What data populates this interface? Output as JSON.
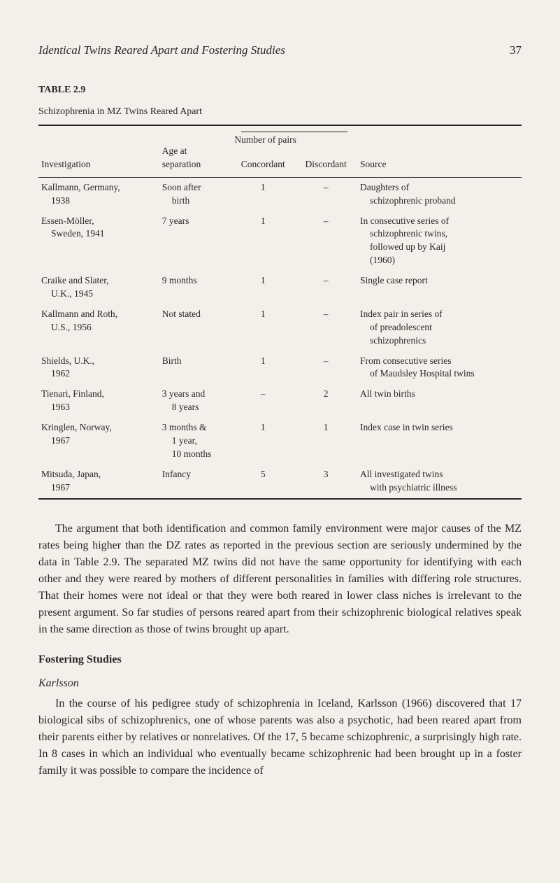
{
  "header": {
    "running_head": "Identical Twins Reared Apart and Fostering Studies",
    "page_number": "37"
  },
  "table": {
    "label": "TABLE 2.9",
    "title": "Schizophrenia in MZ Twins Reared Apart",
    "columns": {
      "investigation": "Investigation",
      "age": "Age at separation",
      "age_top": "Age at",
      "age_bottom": "separation",
      "number_pairs": "Number of pairs",
      "concordant": "Concordant",
      "discordant": "Discordant",
      "source": "Source"
    },
    "rows": [
      {
        "investigation_l1": "Kallmann, Germany,",
        "investigation_l2": "1938",
        "age_l1": "Soon after",
        "age_l2": "birth",
        "concordant": "1",
        "discordant": "–",
        "source_l1": "Daughters of",
        "source_l2": "schizophrenic proband"
      },
      {
        "investigation_l1": "Essen-Möller,",
        "investigation_l2": "Sweden, 1941",
        "age_l1": "7 years",
        "age_l2": "",
        "concordant": "1",
        "discordant": "–",
        "source_l1": "In consecutive series of",
        "source_l2": "schizophrenic twins,",
        "source_l3": "followed up by Kaij",
        "source_l4": "(1960)"
      },
      {
        "investigation_l1": "Craike and Slater,",
        "investigation_l2": "U.K., 1945",
        "age_l1": "9 months",
        "age_l2": "",
        "concordant": "1",
        "discordant": "–",
        "source_l1": "Single case report"
      },
      {
        "investigation_l1": "Kallmann and Roth,",
        "investigation_l2": "U.S., 1956",
        "age_l1": "Not stated",
        "age_l2": "",
        "concordant": "1",
        "discordant": "–",
        "source_l1": "Index pair in series of",
        "source_l2": "of preadolescent",
        "source_l3": "schizophrenics"
      },
      {
        "investigation_l1": "Shields, U.K.,",
        "investigation_l2": "1962",
        "age_l1": "Birth",
        "age_l2": "",
        "concordant": "1",
        "discordant": "–",
        "source_l1": "From consecutive series",
        "source_l2": "of Maudsley Hospital twins"
      },
      {
        "investigation_l1": "Tienari, Finland,",
        "investigation_l2": "1963",
        "age_l1": "3 years and",
        "age_l2": "8 years",
        "concordant": "–",
        "discordant": "2",
        "source_l1": "All twin births"
      },
      {
        "investigation_l1": "Kringlen, Norway,",
        "investigation_l2": "1967",
        "age_l1": "3 months &",
        "age_l2": "1 year,",
        "age_l3": "10 months",
        "concordant": "1",
        "discordant": "1",
        "source_l1": "Index case in twin series"
      },
      {
        "investigation_l1": "Mitsuda, Japan,",
        "investigation_l2": "1967",
        "age_l1": "Infancy",
        "age_l2": "",
        "concordant": "5",
        "discordant": "3",
        "source_l1": "All investigated twins",
        "source_l2": "with psychiatric illness"
      }
    ]
  },
  "body": {
    "para1": "The argument that both identification and common family environment were major causes of the MZ rates being higher than the DZ rates as reported in the previous section are seriously undermined by the data in Table 2.9. The separated MZ twins did not have the same opportunity for identifying with each other and they were reared by mothers of different personalities in families with differing role structures. That their homes were not ideal or that they were both reared in lower class niches is irrelevant to the present argument. So far studies of persons reared apart from their schizophrenic biological relatives speak in the same direction as those of twins brought up apart.",
    "heading": "Fostering Studies",
    "subheading": "Karlsson",
    "para2": "In the course of his pedigree study of schizophrenia in Iceland, Karlsson (1966) discovered that 17 biological sibs of schizophrenics, one of whose parents was also a psychotic, had been reared apart from their parents either by relatives or nonrelatives. Of the 17, 5 became schizophrenic, a surprisingly high rate. In 8 cases in which an individual who eventually became schizophrenic had been brought up in a foster family it was possible to compare the incidence of"
  },
  "style": {
    "background_color": "#f2f0ea",
    "text_color": "#2a2724",
    "body_fontsize": 16,
    "table_fontsize": 13.5,
    "rule_color": "#2a2724"
  }
}
